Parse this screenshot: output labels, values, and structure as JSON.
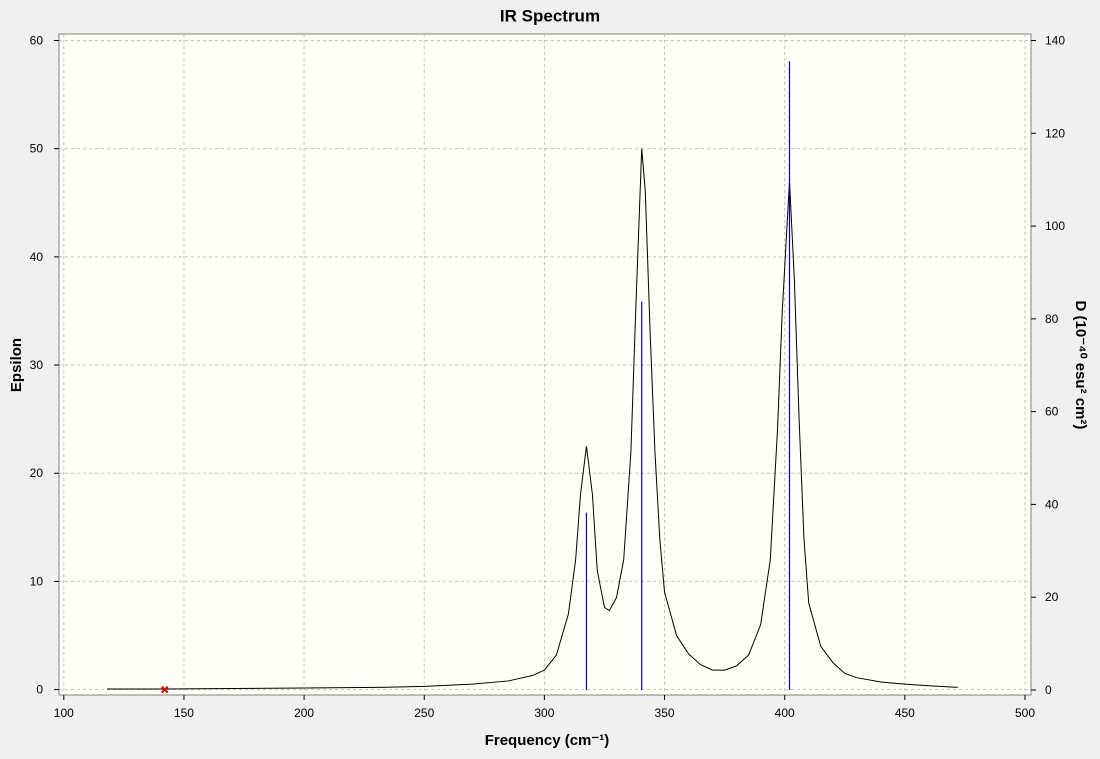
{
  "chart_data": {
    "type": "spectrum",
    "title": "IR Spectrum",
    "xlabel": "Frequency (cm⁻¹)",
    "ylabel": "Epsilon",
    "y2label": "D (10⁻⁴⁰ esu² cm²)",
    "xlim": [
      98,
      502.5
    ],
    "ylim": [
      -0.5,
      60.6
    ],
    "y2lim": [
      -1.08,
      141.4
    ],
    "xticks": [
      100,
      150,
      200,
      250,
      300,
      350,
      400,
      450,
      500
    ],
    "yticks": [
      0,
      10,
      20,
      30,
      40,
      50,
      60
    ],
    "y2ticks": [
      0,
      20,
      40,
      60,
      80,
      100,
      120,
      140
    ],
    "grid": true,
    "series": [
      {
        "name": "Epsilon",
        "color": "#000000",
        "x": [
          118,
          142,
          170,
          200,
          230,
          250,
          270,
          285,
          295,
          300,
          305,
          310,
          313,
          315,
          317.5,
          320,
          322,
          325,
          327,
          330,
          333,
          336,
          338,
          340.5,
          342,
          344,
          346,
          348,
          350,
          355,
          360,
          365,
          370,
          375,
          380,
          385,
          390,
          394,
          397,
          399,
          402,
          404,
          406,
          408,
          410,
          415,
          420,
          425,
          430,
          440,
          450,
          460,
          472
        ],
        "values": [
          0.05,
          0.05,
          0.1,
          0.15,
          0.2,
          0.3,
          0.5,
          0.8,
          1.3,
          1.8,
          3.2,
          7,
          12,
          18,
          22.5,
          18,
          11,
          7.6,
          7.3,
          8.5,
          12,
          22,
          35,
          50,
          46,
          33,
          22,
          14,
          9,
          5,
          3.3,
          2.3,
          1.8,
          1.8,
          2.2,
          3.2,
          6,
          12,
          24,
          35,
          47,
          38,
          25,
          14,
          8,
          4,
          2.5,
          1.5,
          1.1,
          0.7,
          0.5,
          0.35,
          0.2
        ]
      },
      {
        "name": "D",
        "color": "#0000c0",
        "axis": "y2",
        "x": [
          142,
          317.5,
          340.5,
          402
        ],
        "values": [
          0.1,
          38.2,
          83.7,
          135.5
        ]
      }
    ],
    "marker": {
      "x": 142,
      "y": 0,
      "color": "#e00000"
    }
  }
}
